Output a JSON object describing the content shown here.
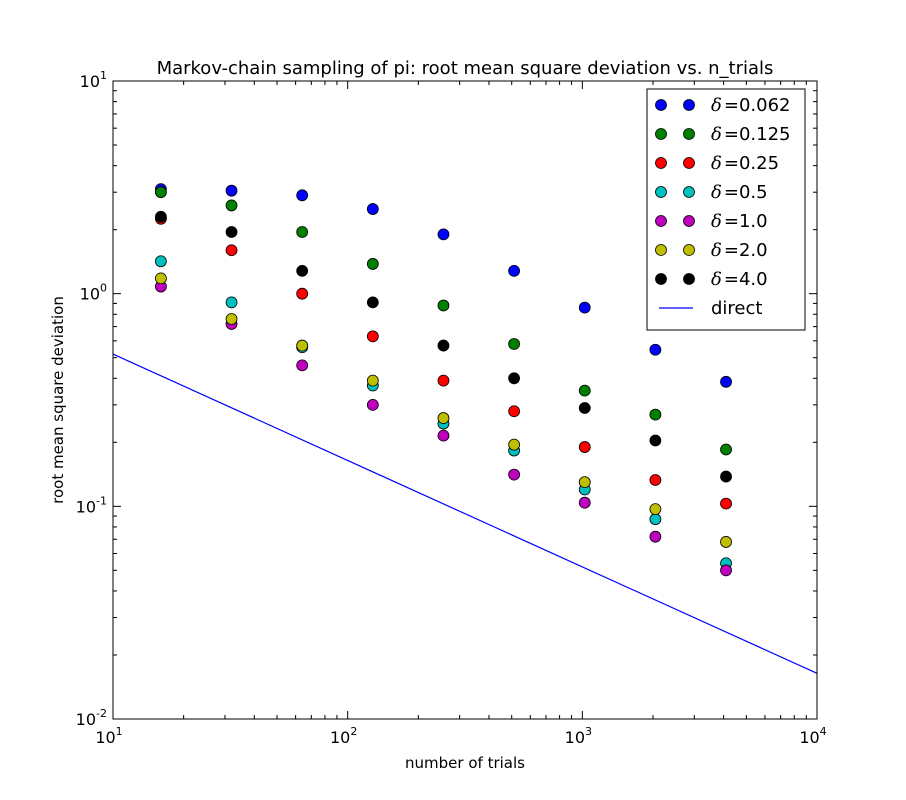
{
  "chart_data": {
    "type": "scatter",
    "title": "Markov-chain sampling of pi: root mean square deviation vs. n_trials",
    "xlabel": "number of trials",
    "ylabel": "root mean square deviation",
    "xscale": "log",
    "yscale": "log",
    "xlim": [
      10,
      10000
    ],
    "ylim": [
      0.01,
      10
    ],
    "x_ticks": [
      {
        "base": "10",
        "exp": "1"
      },
      {
        "base": "10",
        "exp": "2"
      },
      {
        "base": "10",
        "exp": "3"
      },
      {
        "base": "10",
        "exp": "4"
      }
    ],
    "y_ticks": [
      {
        "base": "10",
        "exp": "-2"
      },
      {
        "base": "10",
        "exp": "-1"
      },
      {
        "base": "10",
        "exp": "0"
      },
      {
        "base": "10",
        "exp": "1"
      }
    ],
    "legend_position": "top-right",
    "x": [
      16,
      32,
      64,
      128,
      256,
      512,
      1024,
      2048,
      4096
    ],
    "series": [
      {
        "name": "δ = 0.062",
        "symbol": "δ",
        "eq": "=",
        "value": "0.062",
        "color": "#0000ff",
        "values": [
          3.1,
          3.05,
          2.9,
          2.5,
          1.9,
          1.28,
          0.86,
          0.545,
          0.385
        ]
      },
      {
        "name": "δ = 0.125",
        "symbol": "δ",
        "eq": "=",
        "value": "0.125",
        "color": "#008000",
        "values": [
          3.0,
          2.6,
          1.95,
          1.38,
          0.88,
          0.58,
          0.35,
          0.27,
          0.185
        ]
      },
      {
        "name": "δ = 0.25",
        "symbol": "δ",
        "eq": "=",
        "value": "0.25",
        "color": "#ff0000",
        "values": [
          2.25,
          1.6,
          1.0,
          0.63,
          0.39,
          0.28,
          0.19,
          0.133,
          0.103
        ]
      },
      {
        "name": "δ = 0.5",
        "symbol": "δ",
        "eq": "=",
        "value": "0.5",
        "color": "#00bfbf",
        "values": [
          1.42,
          0.91,
          0.56,
          0.37,
          0.245,
          0.183,
          0.12,
          0.087,
          0.054
        ]
      },
      {
        "name": "δ = 1.0",
        "symbol": "δ",
        "eq": "=",
        "value": "1.0",
        "color": "#bf00bf",
        "values": [
          1.08,
          0.72,
          0.46,
          0.3,
          0.215,
          0.141,
          0.104,
          0.072,
          0.05
        ]
      },
      {
        "name": "δ = 2.0",
        "symbol": "δ",
        "eq": "=",
        "value": "2.0",
        "color": "#bfbf00",
        "values": [
          1.18,
          0.76,
          0.57,
          0.39,
          0.26,
          0.195,
          0.13,
          0.097,
          0.068
        ]
      },
      {
        "name": "δ = 4.0",
        "symbol": "δ",
        "eq": "=",
        "value": "4.0",
        "color": "#000000",
        "values": [
          2.3,
          1.95,
          1.28,
          0.91,
          0.57,
          0.4,
          0.29,
          0.204,
          0.138
        ]
      }
    ],
    "line_series": {
      "name": "direct",
      "label": "direct",
      "color": "#0000ff",
      "x": [
        10,
        10000
      ],
      "values": [
        0.52,
        0.0164
      ]
    }
  }
}
